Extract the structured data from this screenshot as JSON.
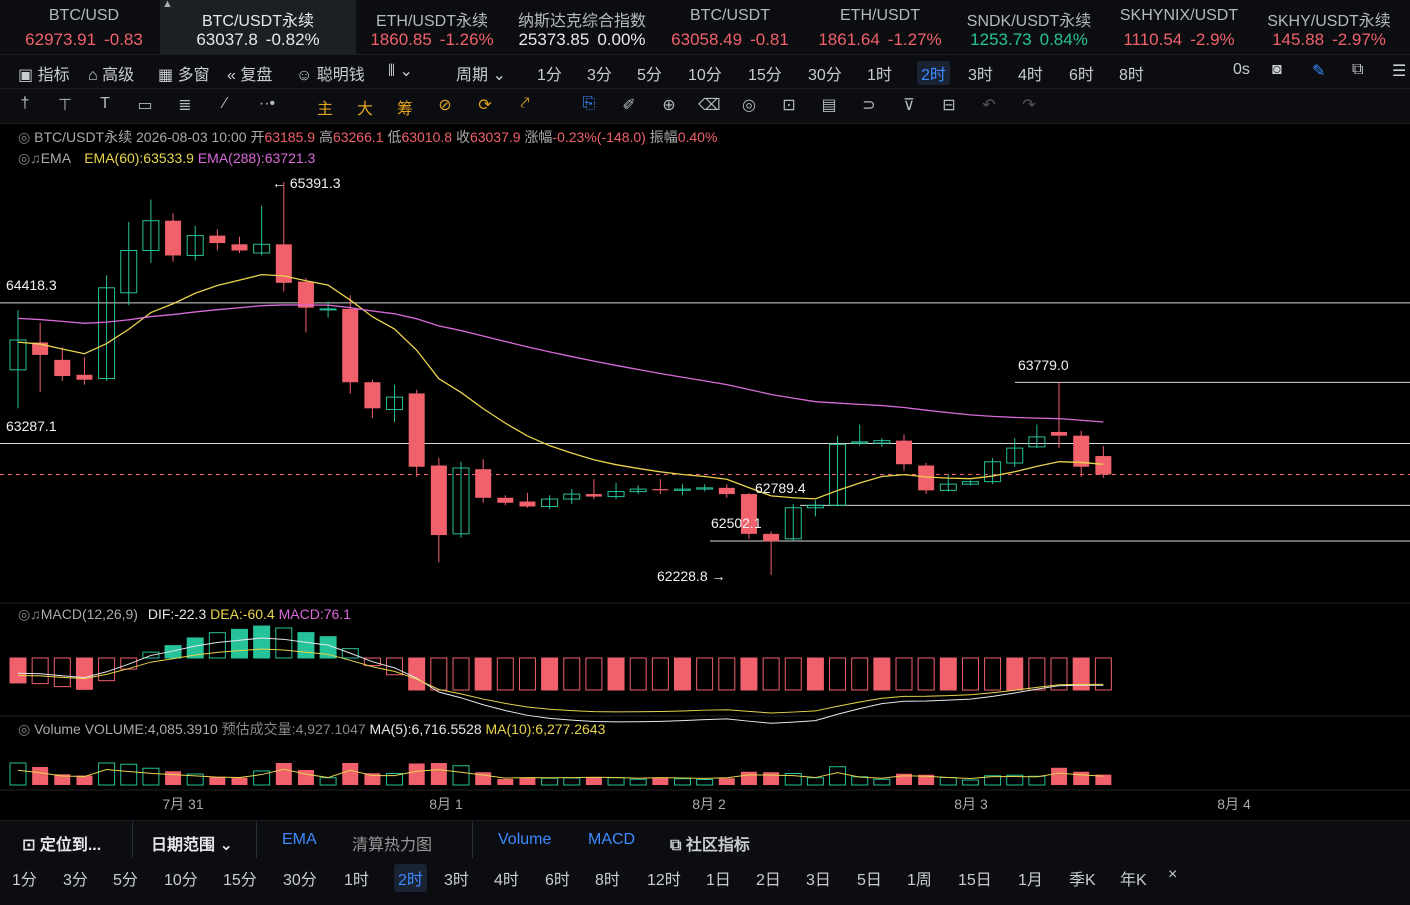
{
  "tickers": [
    {
      "sym": "BTC/USD",
      "price": "62973.91",
      "chg": "-0.83",
      "dir": "dn",
      "active": false
    },
    {
      "sym": "BTC/USDT永续",
      "price": "63037.8",
      "chg": "-0.82%",
      "dir": "dn",
      "active": true
    },
    {
      "sym": "ETH/USDT永续",
      "price": "1860.85",
      "chg": "-1.26%",
      "dir": "dn",
      "active": false
    },
    {
      "sym": "纳斯达克综合指数",
      "price": "25373.85",
      "chg": "0.00%",
      "dir": "neu",
      "active": false
    },
    {
      "sym": "BTC/USDT",
      "price": "63058.49",
      "chg": "-0.81",
      "dir": "dn",
      "active": false
    },
    {
      "sym": "ETH/USDT",
      "price": "1861.64",
      "chg": "-1.27%",
      "dir": "dn",
      "active": false
    },
    {
      "sym": "SNDK/USDT永续",
      "price": "1253.73",
      "chg": "0.84%",
      "dir": "up",
      "active": false
    },
    {
      "sym": "SKHYNIX/USDT",
      "price": "1110.54",
      "chg": "-2.9%",
      "dir": "dn",
      "active": false
    },
    {
      "sym": "SKHY/USDT永续",
      "price": "145.88",
      "chg": "-2.97%",
      "dir": "dn",
      "active": false
    }
  ],
  "toolbar1": {
    "indicators": "指标",
    "advanced": "高级",
    "multi": "多窗",
    "replay": "复盘",
    "smart": "聪明钱",
    "period": "周期",
    "intervals": [
      "1分",
      "3分",
      "5分",
      "10分",
      "15分",
      "30分",
      "1时",
      "2时",
      "3时",
      "4时",
      "6时",
      "8时"
    ],
    "selected": "2时",
    "countdown": "0s"
  },
  "toolbar2": {
    "main": "主",
    "big": "大",
    "fund": "筹"
  },
  "legend": {
    "symbol": "BTC/USDT永续",
    "date": "2026-08-03 10:00",
    "open_l": "开",
    "open": "63185.9",
    "high_l": "高",
    "high": "63266.1",
    "low_l": "低",
    "low": "63010.8",
    "close_l": "收",
    "close": "63037.9",
    "chg_l": "涨幅",
    "chg": "-0.23%(-148.0)",
    "amp_l": "振幅",
    "amp": "0.40%",
    "ema_name": "EMA",
    "ema60": "EMA(60):63533.9",
    "ema288": "EMA(288):63721.3",
    "macd_name": "MACD(12,26,9)",
    "dif": "DIF:-22.3",
    "dea": "DEA:-60.4",
    "macd": "MACD:76.1",
    "vol_name": "Volume",
    "volume": "VOLUME:4,085.3910",
    "est_vol": "预估成交量:4,927.1047",
    "ma5": "MA(5):6,716.5528",
    "ma10": "MA(10):6,277.2643"
  },
  "price_marks": {
    "high": "65391.3",
    "low": "62228.8",
    "l1": "64418.3",
    "l2": "63287.1",
    "l3": "63779.0",
    "l4": "62789.4",
    "l5": "62502.1"
  },
  "dates": [
    "7月 31",
    "8月 1",
    "8月 2",
    "8月 3",
    "8月 4"
  ],
  "colors": {
    "up": "#26c29a",
    "down": "#f0616c",
    "ema60": "#e8d44d",
    "ema288": "#d86ad8",
    "accent": "#3d8bff"
  },
  "chart_data": {
    "type": "candlestick",
    "interval": "2h",
    "candles": [
      {
        "o": 63880,
        "h": 64360,
        "l": 63570,
        "c": 64120
      },
      {
        "o": 64100,
        "h": 64260,
        "l": 63700,
        "c": 64000
      },
      {
        "o": 63960,
        "h": 64060,
        "l": 63790,
        "c": 63830
      },
      {
        "o": 63840,
        "h": 63980,
        "l": 63760,
        "c": 63800
      },
      {
        "o": 63810,
        "h": 64640,
        "l": 63790,
        "c": 64540
      },
      {
        "o": 64500,
        "h": 65070,
        "l": 64400,
        "c": 64840
      },
      {
        "o": 64840,
        "h": 65250,
        "l": 64740,
        "c": 65080
      },
      {
        "o": 65080,
        "h": 65140,
        "l": 64750,
        "c": 64800
      },
      {
        "o": 64800,
        "h": 65040,
        "l": 64760,
        "c": 64960
      },
      {
        "o": 64960,
        "h": 65010,
        "l": 64840,
        "c": 64900
      },
      {
        "o": 64890,
        "h": 64950,
        "l": 64820,
        "c": 64840
      },
      {
        "o": 64820,
        "h": 65200,
        "l": 64800,
        "c": 64890
      },
      {
        "o": 64890,
        "h": 65391,
        "l": 64510,
        "c": 64580
      },
      {
        "o": 64590,
        "h": 64620,
        "l": 64180,
        "c": 64380
      },
      {
        "o": 64370,
        "h": 64430,
        "l": 64300,
        "c": 64370
      },
      {
        "o": 64370,
        "h": 64480,
        "l": 63690,
        "c": 63780
      },
      {
        "o": 63780,
        "h": 63800,
        "l": 63490,
        "c": 63570
      },
      {
        "o": 63560,
        "h": 63760,
        "l": 63460,
        "c": 63660
      },
      {
        "o": 63690,
        "h": 63720,
        "l": 63020,
        "c": 63100
      },
      {
        "o": 63110,
        "h": 63170,
        "l": 62330,
        "c": 62550
      },
      {
        "o": 62560,
        "h": 63140,
        "l": 62530,
        "c": 63090
      },
      {
        "o": 63080,
        "h": 63160,
        "l": 62810,
        "c": 62850
      },
      {
        "o": 62850,
        "h": 62870,
        "l": 62790,
        "c": 62810
      },
      {
        "o": 62820,
        "h": 62890,
        "l": 62770,
        "c": 62780
      },
      {
        "o": 62780,
        "h": 62870,
        "l": 62760,
        "c": 62840
      },
      {
        "o": 62840,
        "h": 62920,
        "l": 62800,
        "c": 62880
      },
      {
        "o": 62880,
        "h": 63000,
        "l": 62840,
        "c": 62860
      },
      {
        "o": 62860,
        "h": 62970,
        "l": 62840,
        "c": 62900
      },
      {
        "o": 62900,
        "h": 62950,
        "l": 62880,
        "c": 62920
      },
      {
        "o": 62920,
        "h": 63000,
        "l": 62880,
        "c": 62910
      },
      {
        "o": 62910,
        "h": 62960,
        "l": 62870,
        "c": 62920
      },
      {
        "o": 62920,
        "h": 62960,
        "l": 62900,
        "c": 62930
      },
      {
        "o": 62930,
        "h": 62960,
        "l": 62850,
        "c": 62880
      },
      {
        "o": 62880,
        "h": 62890,
        "l": 62520,
        "c": 62560
      },
      {
        "o": 62560,
        "h": 62580,
        "l": 62229,
        "c": 62500
      },
      {
        "o": 62520,
        "h": 62800,
        "l": 62500,
        "c": 62770
      },
      {
        "o": 62770,
        "h": 62830,
        "l": 62700,
        "c": 62790
      },
      {
        "o": 62790,
        "h": 63350,
        "l": 62780,
        "c": 63280
      },
      {
        "o": 63290,
        "h": 63440,
        "l": 63270,
        "c": 63300
      },
      {
        "o": 63290,
        "h": 63330,
        "l": 63260,
        "c": 63310
      },
      {
        "o": 63310,
        "h": 63360,
        "l": 63070,
        "c": 63120
      },
      {
        "o": 63110,
        "h": 63130,
        "l": 62880,
        "c": 62910
      },
      {
        "o": 62910,
        "h": 63040,
        "l": 62900,
        "c": 62960
      },
      {
        "o": 62960,
        "h": 62990,
        "l": 62950,
        "c": 62980
      },
      {
        "o": 62980,
        "h": 63170,
        "l": 62960,
        "c": 63140
      },
      {
        "o": 63130,
        "h": 63330,
        "l": 63100,
        "c": 63250
      },
      {
        "o": 63260,
        "h": 63440,
        "l": 63250,
        "c": 63340
      },
      {
        "o": 63380,
        "h": 63779,
        "l": 63250,
        "c": 63350
      },
      {
        "o": 63350,
        "h": 63390,
        "l": 63020,
        "c": 63100
      },
      {
        "o": 63185.9,
        "h": 63266.1,
        "l": 63010.8,
        "c": 63037.9
      }
    ]
  }
}
